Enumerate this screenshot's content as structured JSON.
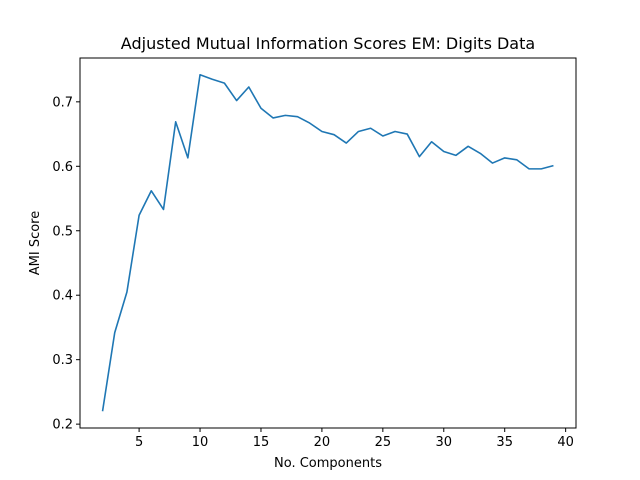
{
  "chart_data": {
    "type": "line",
    "title": "Adjusted Mutual Information Scores EM: Digits Data",
    "xlabel": "No. Components",
    "ylabel": "AMI Score",
    "xlim": [
      0.15,
      40.85
    ],
    "ylim": [
      0.194,
      0.768
    ],
    "xticks": [
      5,
      10,
      15,
      20,
      25,
      30,
      35,
      40
    ],
    "yticks": [
      0.2,
      0.3,
      0.4,
      0.5,
      0.6,
      0.7
    ],
    "ytick_labels": [
      "0.2",
      "0.3",
      "0.4",
      "0.5",
      "0.6",
      "0.7"
    ],
    "grid": false,
    "line_color": "#1f77b4",
    "series": [
      {
        "x": [
          2,
          3,
          4,
          5,
          6,
          7,
          8,
          9,
          10,
          11,
          12,
          13,
          14,
          15,
          16,
          17,
          18,
          19,
          20,
          21,
          22,
          23,
          24,
          25,
          26,
          27,
          28,
          29,
          30,
          31,
          32,
          33,
          34,
          35,
          36,
          37,
          38,
          39
        ],
        "values": [
          0.22,
          0.342,
          0.405,
          0.524,
          0.562,
          0.533,
          0.669,
          0.613,
          0.742,
          0.735,
          0.729,
          0.702,
          0.723,
          0.69,
          0.675,
          0.679,
          0.677,
          0.667,
          0.654,
          0.649,
          0.636,
          0.654,
          0.659,
          0.647,
          0.654,
          0.65,
          0.615,
          0.638,
          0.623,
          0.617,
          0.631,
          0.62,
          0.605,
          0.613,
          0.61,
          0.596,
          0.596,
          0.601
        ]
      }
    ]
  }
}
